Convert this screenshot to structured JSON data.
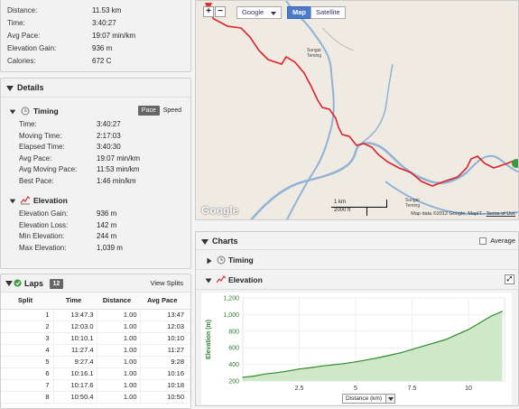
{
  "summary": [
    {
      "label": "Distance:",
      "value": "11.53 km"
    },
    {
      "label": "Time:",
      "value": "3:40:27"
    },
    {
      "label": "Avg Pace:",
      "value": "19:07 min/km"
    },
    {
      "label": "Elevation Gain:",
      "value": "936 m"
    },
    {
      "label": "Calories:",
      "value": "672 C"
    }
  ],
  "details": {
    "title": "Details",
    "timing": {
      "title": "Timing",
      "toggle_pace": "Pace",
      "toggle_speed": "Speed",
      "rows": [
        {
          "label": "Time:",
          "value": "3:40:27"
        },
        {
          "label": "Moving Time:",
          "value": "2:17:03"
        },
        {
          "label": "Elapsed Time:",
          "value": "3:40:30"
        },
        {
          "label": "Avg Pace:",
          "value": "19:07 min/km"
        },
        {
          "label": "Avg Moving Pace:",
          "value": "11:53 min/km"
        },
        {
          "label": "Best Pace:",
          "value": "1:46 min/km"
        }
      ]
    },
    "elevation": {
      "title": "Elevation",
      "rows": [
        {
          "label": "Elevation Gain:",
          "value": "936 m"
        },
        {
          "label": "Elevation Loss:",
          "value": "142 m"
        },
        {
          "label": "Min Elevation:",
          "value": "244 m"
        },
        {
          "label": "Max Elevation:",
          "value": "1,039 m"
        }
      ]
    }
  },
  "laps": {
    "title": "Laps",
    "count": "12",
    "view_splits": "View Splits",
    "columns": [
      "Split",
      "Time",
      "Distance",
      "Avg Pace"
    ],
    "rows": [
      [
        "1",
        "13:47.3",
        "1.00",
        "13:47"
      ],
      [
        "2",
        "12:03.0",
        "1.00",
        "12:03"
      ],
      [
        "3",
        "10:10.1",
        "1.00",
        "10:10"
      ],
      [
        "4",
        "11:27.4",
        "1.00",
        "11:27"
      ],
      [
        "5",
        "9:27.4",
        "1.00",
        "9:28"
      ],
      [
        "6",
        "10:16.1",
        "1.00",
        "10:16"
      ],
      [
        "7",
        "10:17.6",
        "1.00",
        "10:18"
      ],
      [
        "8",
        "10:50.4",
        "1.00",
        "10:50"
      ]
    ]
  },
  "map": {
    "zoom_in": "+",
    "zoom_out": "−",
    "type_select": "Google",
    "btn_map": "Map",
    "btn_satellite": "Satellite",
    "logo": "Google",
    "scale_km": "1 km",
    "scale_ft": "2000 ft",
    "credit": "Map data ©2012 Google, MapIT - ",
    "terms": "Terms of Use",
    "place1": "Sungai Teming",
    "place2": "Sungai Teming",
    "route_color": "#e0202a",
    "river_color": "#8fb3d6"
  },
  "charts": {
    "title": "Charts",
    "average_label": "Average",
    "timing_label": "Timing",
    "elevation_label": "Elevation",
    "expand_icon": "⤢",
    "distance_select": "Distance (km)"
  },
  "chart_data": {
    "type": "area",
    "ylabel": "Elevation (m)",
    "xlabel": "Distance (km)",
    "ylim": [
      200,
      1200
    ],
    "xlim": [
      0,
      11.6
    ],
    "yticks": [
      "200",
      "400",
      "600",
      "800",
      "1,000",
      "1,200"
    ],
    "xticks": [
      "2.5",
      "5",
      "7.5",
      "10"
    ],
    "line_color": "#2e8b2e",
    "fill_color": "#cfe8c8",
    "x": [
      0,
      0.5,
      1,
      1.5,
      2,
      2.5,
      3,
      3.5,
      4,
      4.5,
      5,
      5.5,
      6,
      6.5,
      7,
      7.5,
      8,
      8.5,
      9,
      9.5,
      10,
      10.5,
      11,
      11.5
    ],
    "y": [
      244,
      260,
      285,
      300,
      320,
      345,
      360,
      380,
      395,
      410,
      430,
      455,
      480,
      510,
      540,
      580,
      620,
      660,
      700,
      760,
      820,
      900,
      980,
      1039
    ]
  }
}
